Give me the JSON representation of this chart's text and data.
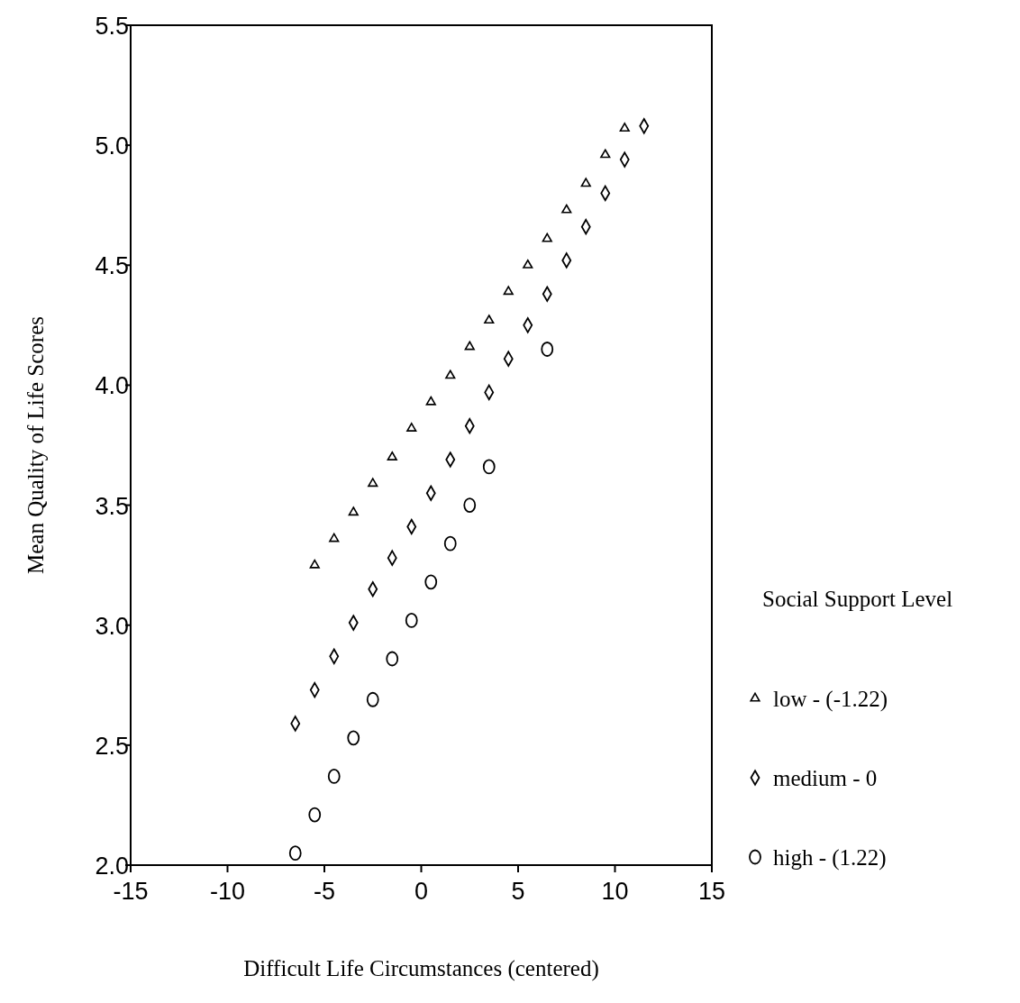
{
  "chart_data": {
    "type": "scatter",
    "xlabel": "Difficult Life Circumstances (centered)",
    "ylabel": "Mean Quality of Life Scores",
    "legend_title": "Social Support Level",
    "legend": "right",
    "grid": false,
    "xlim": [
      -15,
      15
    ],
    "xticks": [
      -15,
      -10,
      -5,
      0,
      5,
      10,
      15
    ],
    "ylim": [
      2,
      5.5
    ],
    "yticks": [
      {
        "value": 2,
        "label": "2.0"
      },
      {
        "value": 2.5,
        "label": "2.5"
      },
      {
        "value": 3,
        "label": "3.0"
      },
      {
        "value": 3.5,
        "label": "3.5"
      },
      {
        "value": 4,
        "label": "4.0"
      },
      {
        "value": 4.5,
        "label": "4.5"
      },
      {
        "value": 5,
        "label": "5.0"
      },
      {
        "value": 5.5,
        "label": "5.5"
      }
    ],
    "series": [
      {
        "name": "low - (-1.22)",
        "color": "#000000",
        "marker": "triangle",
        "x": [
          -5.5,
          -4.5,
          -3.5,
          -2.5,
          -1.5,
          -0.5,
          0.5,
          1.5,
          2.5,
          3.5,
          4.5,
          5.5,
          6.5,
          7.5,
          8.5,
          9.5,
          10.5
        ],
        "values": [
          3.25,
          3.36,
          3.47,
          3.59,
          3.7,
          3.82,
          3.93,
          4.04,
          4.16,
          4.27,
          4.39,
          4.5,
          4.61,
          4.73,
          4.84,
          4.96,
          5.07
        ]
      },
      {
        "name": "medium - 0",
        "color": "#000000",
        "marker": "diamond",
        "x": [
          -6.5,
          -5.5,
          -4.5,
          -3.5,
          -2.5,
          -1.5,
          -0.5,
          0.5,
          1.5,
          2.5,
          3.5,
          4.5,
          5.5,
          6.5,
          7.5,
          8.5,
          9.5,
          10.5,
          11.5
        ],
        "values": [
          2.59,
          2.73,
          2.87,
          3.01,
          3.15,
          3.28,
          3.41,
          3.55,
          3.69,
          3.83,
          3.97,
          4.11,
          4.25,
          4.38,
          4.52,
          4.66,
          4.8,
          4.94,
          5.08
        ]
      },
      {
        "name": "high - (1.22)",
        "color": "#000000",
        "marker": "circle",
        "x": [
          -6.5,
          -5.5,
          -4.5,
          -3.5,
          -2.5,
          -1.5,
          -0.5,
          0.5,
          1.5,
          2.5,
          3.5,
          6.5
        ],
        "values": [
          2.05,
          2.21,
          2.37,
          2.53,
          2.69,
          2.86,
          3.02,
          3.18,
          3.34,
          3.5,
          3.66,
          4.15
        ]
      }
    ]
  }
}
